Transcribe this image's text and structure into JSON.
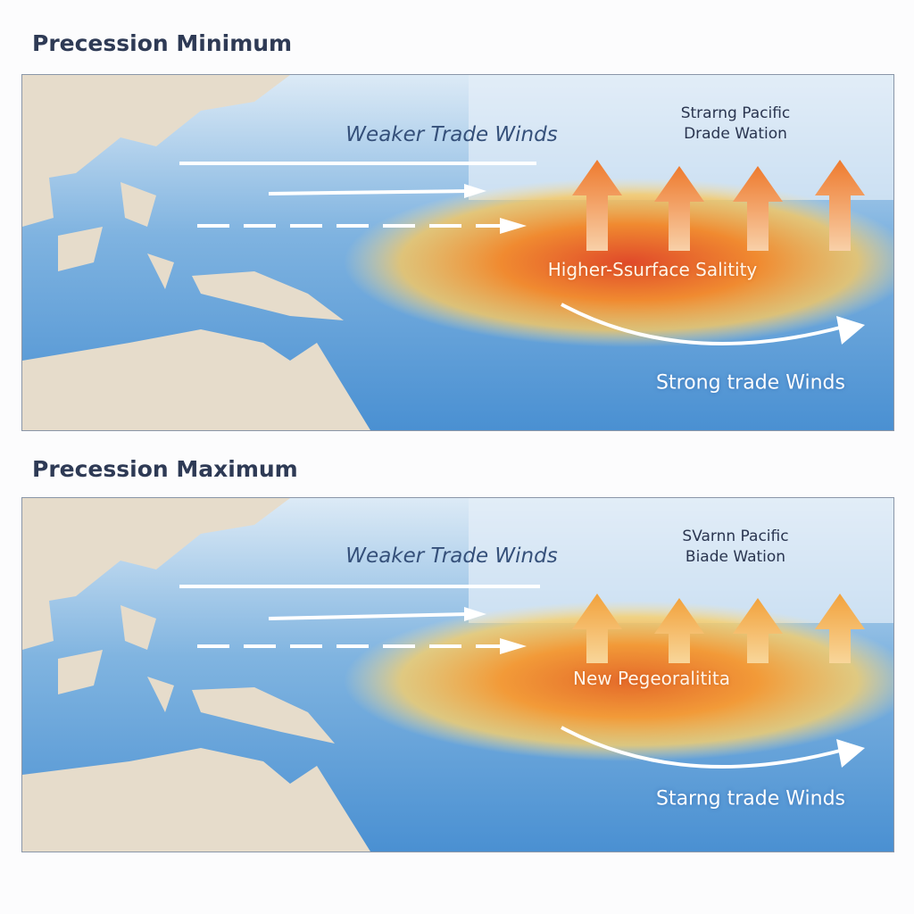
{
  "panels": [
    {
      "title": "Precession Minimum",
      "weaker_label": "Weaker Trade Winds",
      "pacific_line1": "Strarng Pacific",
      "pacific_line2": "Drade Wation",
      "center_label": "Higher-Ssurface Salitity",
      "strong_label": "Strong trade Winds",
      "arrow_color": "#ee7a2e",
      "warm_core": "#e04a2a"
    },
    {
      "title": "Precession Maximum",
      "weaker_label": "Weaker Trade Winds",
      "pacific_line1": "SVarnn Pacific",
      "pacific_line2": "Biade Wation",
      "center_label": "New Pegeoralitita",
      "strong_label": "Starng trade Winds",
      "arrow_color": "#f2a23c",
      "warm_core": "#e46a2a"
    }
  ]
}
